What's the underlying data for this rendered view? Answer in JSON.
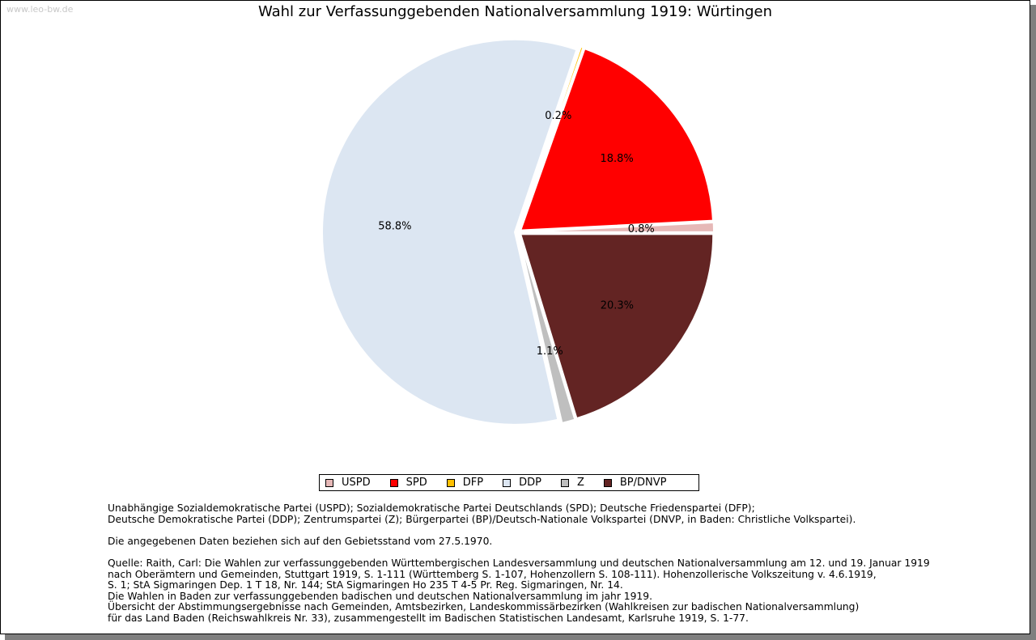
{
  "watermark": "www.leo-bw.de",
  "chart_data": {
    "type": "pie",
    "title": "Wahl zur Verfassunggebenden Nationalversammlung 1919: Würtingen",
    "slices": [
      {
        "name": "USPD",
        "value": 0.8,
        "label": "0.8%",
        "color": "#E6B8B7"
      },
      {
        "name": "SPD",
        "value": 18.8,
        "label": "18.8%",
        "color": "#FF0000"
      },
      {
        "name": "DFP",
        "value": 0.2,
        "label": "0.2%",
        "color": "#FFC000"
      },
      {
        "name": "DDP",
        "value": 58.8,
        "label": "58.8%",
        "color": "#DCE6F2"
      },
      {
        "name": "Z",
        "value": 1.1,
        "label": "1.1%",
        "color": "#BFBFBF"
      },
      {
        "name": "BP/DNVP",
        "value": 20.3,
        "label": "20.3%",
        "color": "#632423"
      }
    ],
    "legend": [
      "USPD",
      "SPD",
      "DFP",
      "DDP",
      "Z",
      "BP/DNVP"
    ],
    "legend_position": "bottom"
  },
  "notes": {
    "lines_1": [
      "Unabhängige Sozialdemokratische Partei (USPD); Sozialdemokratische Partei Deutschlands (SPD); Deutsche Friedenspartei (DFP);",
      "Deutsche Demokratische Partei (DDP); Zentrumspartei (Z); Bürgerpartei (BP)/Deutsch-Nationale Volkspartei (DNVP, in Baden: Christliche Volkspartei)."
    ],
    "lines_2": [
      "Die angegebenen Daten beziehen sich auf den Gebietsstand vom 27.5.1970."
    ],
    "lines_3": [
      "Quelle: Raith, Carl: Die Wahlen zur verfassunggebenden Württembergischen Landesversammlung und deutschen Nationalversammlung am 12. und 19. Januar 1919",
      "nach Oberämtern und Gemeinden, Stuttgart 1919, S. 1-111 (Württemberg S. 1-107, Hohenzollern S. 108-111). Hohenzollerische Volkszeitung v. 4.6.1919,",
      "S. 1; StA Sigmaringen Dep. 1 T 18, Nr. 144; StA Sigmaringen Ho 235 T 4-5 Pr. Reg. Sigmaringen, Nr. 14.",
      "Die Wahlen in Baden zur verfassunggebenden badischen und deutschen Nationalversammlung im jahr 1919.",
      "Übersicht der Abstimmungsergebnisse nach Gemeinden, Amtsbezirken, Landeskommissärbezirken (Wahlkreisen zur badischen Nationalversammlung)",
      "für das Land Baden (Reichswahlkreis Nr. 33), zusammengestellt im Badischen Statistischen Landesamt, Karlsruhe 1919, S. 1-77."
    ]
  }
}
